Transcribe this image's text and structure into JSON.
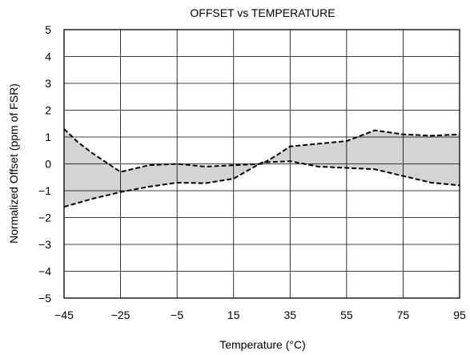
{
  "chart_data": {
    "type": "area",
    "title": "OFFSET vs TEMPERATURE",
    "xlabel": "Temperature (°C)",
    "ylabel": "Normalized Offset (ppm of FSR)",
    "xlim": [
      -45,
      95
    ],
    "ylim": [
      -5,
      5
    ],
    "x_ticks": [
      -45,
      -25,
      -5,
      15,
      35,
      55,
      75,
      95
    ],
    "y_ticks": [
      5,
      4,
      3,
      2,
      1,
      0,
      -1,
      -2,
      -3,
      -4,
      -5
    ],
    "x_tick_labels": [
      "−45",
      "−25",
      "−5",
      "15",
      "35",
      "55",
      "75",
      "95"
    ],
    "y_tick_labels": [
      "5",
      "4",
      "3",
      "2",
      "1",
      "0",
      "−1",
      "−2",
      "−3",
      "−4",
      "−5"
    ],
    "grid": true,
    "fill_color": "#d4d4d4",
    "line_style": "dashed",
    "series": [
      {
        "x": [
          -45,
          -40,
          -35,
          -25,
          -15,
          -5,
          5,
          15,
          25,
          30,
          35,
          45,
          55,
          65,
          75,
          85,
          95
        ],
        "values": [
          1.3,
          0.8,
          0.4,
          -0.3,
          -0.05,
          0.0,
          -0.1,
          -0.05,
          0.0,
          0.3,
          0.65,
          0.75,
          0.85,
          1.25,
          1.1,
          1.05,
          1.1
        ]
      },
      {
        "x": [
          -45,
          -35,
          -25,
          -15,
          -5,
          5,
          15,
          25,
          35,
          45,
          55,
          65,
          75,
          85,
          95
        ],
        "values": [
          -1.6,
          -1.3,
          -1.05,
          -0.85,
          -0.7,
          -0.72,
          -0.55,
          0.05,
          0.1,
          -0.1,
          -0.15,
          -0.2,
          -0.45,
          -0.7,
          -0.8
        ]
      }
    ]
  }
}
